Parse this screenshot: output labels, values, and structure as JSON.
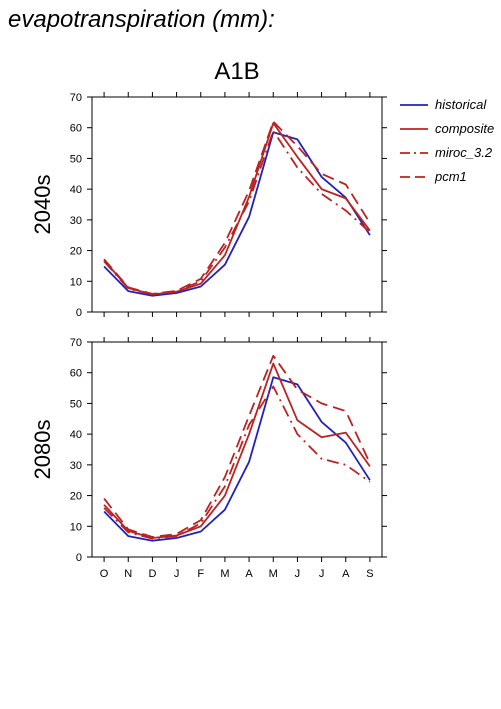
{
  "title": "evapotranspiration (mm):",
  "scenario": "A1B",
  "colors": {
    "historical": "#2222bb",
    "model": "#bb2222"
  },
  "chart_data": [
    {
      "type": "line",
      "panel_label": "2040s",
      "categories": [
        "O",
        "N",
        "D",
        "J",
        "F",
        "M",
        "A",
        "M",
        "J",
        "J",
        "A",
        "S"
      ],
      "ylim": [
        0,
        70
      ],
      "yticks": [
        0,
        10,
        20,
        30,
        40,
        50,
        60,
        70
      ],
      "grid": false,
      "legend": "right",
      "series": [
        {
          "name": "historical",
          "style": "solid",
          "color": "#2222bb",
          "values": [
            14.8,
            6.8,
            5.3,
            6.2,
            8.3,
            15.4,
            31.0,
            58.5,
            56.2,
            44.0,
            37.2,
            25.0
          ]
        },
        {
          "name": "composite",
          "style": "solid",
          "color": "#bb2222",
          "values": [
            16.8,
            7.8,
            5.7,
            6.6,
            9.2,
            18.5,
            37.5,
            61.5,
            50.5,
            40.0,
            37.0,
            26.5
          ]
        },
        {
          "name": "miroc_3.2",
          "style": "dashdot",
          "color": "#bb2222",
          "values": [
            16.5,
            7.6,
            5.8,
            6.8,
            10.0,
            21.0,
            36.0,
            59.0,
            47.0,
            38.5,
            33.0,
            26.0
          ]
        },
        {
          "name": "pcm1",
          "style": "dashed",
          "color": "#bb2222",
          "values": [
            17.2,
            8.0,
            5.9,
            6.9,
            10.8,
            22.5,
            39.5,
            62.0,
            54.0,
            45.0,
            41.5,
            29.0
          ]
        }
      ]
    },
    {
      "type": "line",
      "panel_label": "2080s",
      "categories": [
        "O",
        "N",
        "D",
        "J",
        "F",
        "M",
        "A",
        "M",
        "J",
        "J",
        "A",
        "S"
      ],
      "ylim": [
        0,
        70
      ],
      "yticks": [
        0,
        10,
        20,
        30,
        40,
        50,
        60,
        70
      ],
      "grid": false,
      "series": [
        {
          "name": "historical",
          "style": "solid",
          "color": "#2222bb",
          "values": [
            14.8,
            6.8,
            5.3,
            6.2,
            8.3,
            15.4,
            31.0,
            58.5,
            56.2,
            44.0,
            37.2,
            25.0
          ]
        },
        {
          "name": "composite",
          "style": "solid",
          "color": "#bb2222",
          "values": [
            17.0,
            8.5,
            6.2,
            7.0,
            10.0,
            20.0,
            40.0,
            63.0,
            44.5,
            39.0,
            40.5,
            29.5
          ]
        },
        {
          "name": "miroc_3.2",
          "style": "dashdot",
          "color": "#bb2222",
          "values": [
            16.0,
            8.0,
            6.0,
            6.8,
            11.0,
            23.0,
            43.0,
            55.5,
            40.0,
            32.0,
            30.0,
            24.5
          ]
        },
        {
          "name": "pcm1",
          "style": "dashed",
          "color": "#bb2222",
          "values": [
            19.0,
            9.0,
            6.5,
            7.5,
            12.0,
            26.0,
            46.0,
            65.5,
            54.5,
            50.0,
            47.5,
            30.5
          ]
        }
      ]
    }
  ]
}
